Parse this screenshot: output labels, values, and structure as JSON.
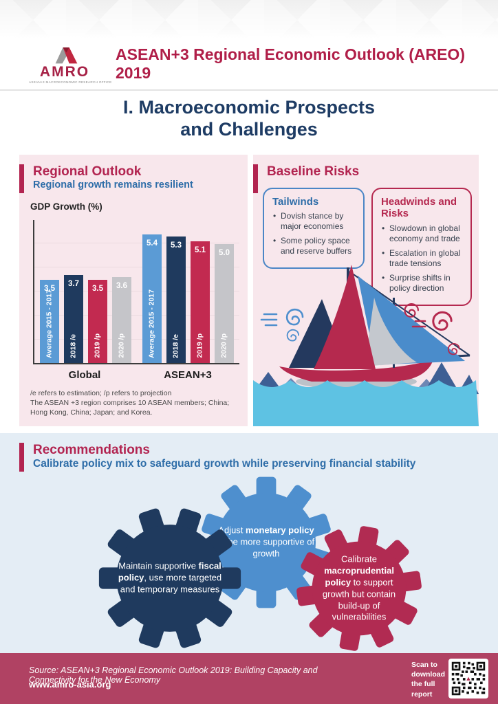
{
  "header": {
    "logo_word": "AMRO",
    "logo_caption": "ASEAN+3 MACROECONOMIC RESEARCH OFFICE",
    "title": "ASEAN+3 Regional Economic Outlook (AREO) 2019"
  },
  "page_title": {
    "line1": "I. Macroeconomic Prospects",
    "line2": "and Challenges"
  },
  "regional_outlook": {
    "title": "Regional Outlook",
    "subtitle": "Regional growth remains resilient",
    "chart_title": "GDP Growth (%)",
    "footnote1": "/e refers to estimation; /p refers to projection",
    "footnote2": "The ASEAN +3 region comprises 10 ASEAN members; China; Hong Kong, China; Japan; and Korea."
  },
  "chart_data": {
    "type": "bar",
    "title": "GDP Growth (%)",
    "categories": [
      "Average 2015 - 2017",
      "2018 /e",
      "2019 /p",
      "2020 /p"
    ],
    "series": [
      {
        "name": "Global",
        "values": [
          3.5,
          3.7,
          3.5,
          3.6
        ]
      },
      {
        "name": "ASEAN+3",
        "values": [
          5.4,
          5.3,
          5.1,
          5.0
        ]
      }
    ],
    "value_labels": [
      [
        "3.5",
        "3.7",
        "3.5",
        "3.6"
      ],
      [
        "5.4",
        "5.3",
        "5.1",
        "5.0"
      ]
    ],
    "group_labels": [
      "Global",
      "ASEAN+3"
    ],
    "xlabel": "",
    "ylabel": "GDP Growth (%)",
    "ylim": [
      0,
      6
    ],
    "grid": true,
    "legend": "none",
    "bar_colors": [
      "#5B9BD5",
      "#1F3A5E",
      "#C22A50",
      "#C5C5C9"
    ]
  },
  "baseline_risks": {
    "title": "Baseline Risks",
    "tailwinds": {
      "title": "Tailwinds",
      "bullets": [
        "Dovish stance by major economies",
        "Some policy space and reserve buffers"
      ]
    },
    "headwinds": {
      "title": "Headwinds and Risks",
      "bullets": [
        "Slowdown in global economy and trade",
        "Escalation in global trade tensions",
        "Surprise shifts in policy direction"
      ]
    }
  },
  "recommendations": {
    "title": "Recommendations",
    "subtitle": "Calibrate policy mix to safeguard growth while preserving financial stability",
    "gears": [
      {
        "pre": "Maintain supportive ",
        "bold": "fiscal policy",
        "post": ", use more targeted and temporary measures",
        "color": "#1F3A5E"
      },
      {
        "pre": "Adjust ",
        "bold": "monetary policy",
        "post": " to be more supportive of growth",
        "color": "#4E8FCE"
      },
      {
        "pre": "Calibrate ",
        "bold": "macroprudential policy",
        "post": " to support growth but contain build-up of vulnerabilities",
        "color": "#B12B52"
      }
    ]
  },
  "footer": {
    "source": "Source: ASEAN+3 Regional Economic Outlook 2019: Building Capacity and Connectivity for the New Economy",
    "website": "www.amro-asia.org",
    "scan_text": "Scan to download the full report"
  },
  "colors": {
    "crimson": "#B22450",
    "navy": "#1F3A5E",
    "blue": "#2E6DA8",
    "light_blue_bar": "#5B9BD5",
    "gray_bar": "#C5C5C9",
    "panel_pink": "#F8E7EC",
    "panel_light_blue": "#E4EDF5",
    "footer_bg": "#B04263",
    "water": "#5EC2E3"
  }
}
